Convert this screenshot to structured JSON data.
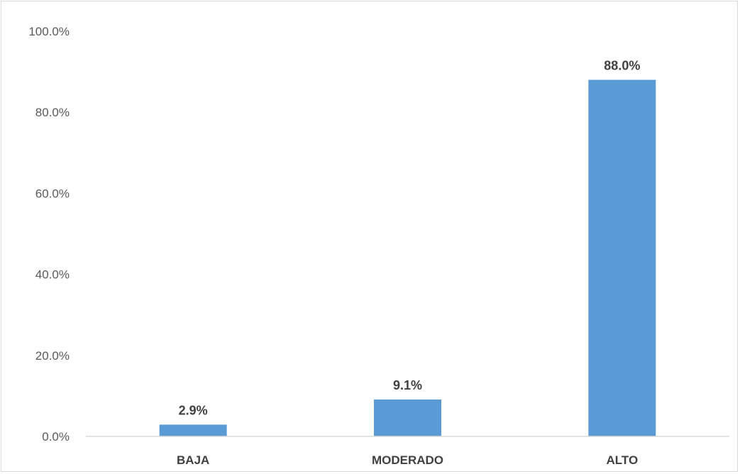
{
  "chart_data": {
    "type": "bar",
    "title": "",
    "xlabel": "",
    "ylabel": "",
    "categories": [
      "BAJA",
      "MODERADO",
      "ALTO"
    ],
    "values": [
      2.9,
      9.1,
      88.0
    ],
    "data_labels": [
      "2.9%",
      "9.1%",
      "88.0%"
    ],
    "ylim": [
      0,
      100
    ],
    "yticks": [
      0,
      20,
      40,
      60,
      80,
      100
    ],
    "ytick_labels": [
      "0.0%",
      "20.0%",
      "40.0%",
      "60.0%",
      "80.0%",
      "100.0%"
    ],
    "grid": false,
    "legend": "none",
    "bar_color": "#5b9bd5",
    "axis_color": "#d9d9d9"
  }
}
